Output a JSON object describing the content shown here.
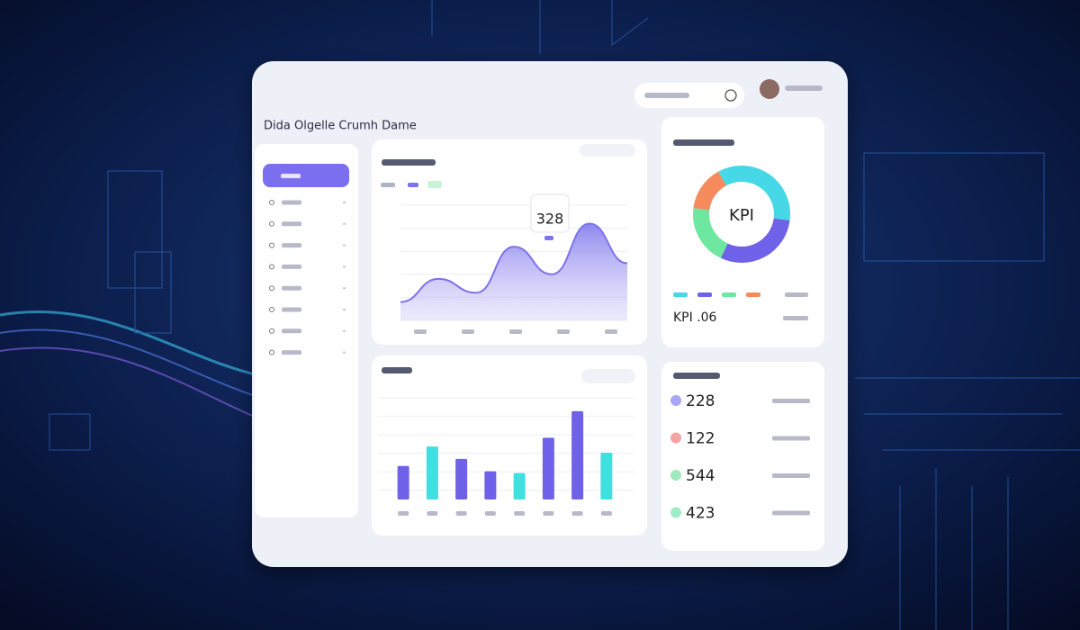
{
  "header": {
    "title": "Dida Olgelle Crumh Dame"
  },
  "area_chart": {
    "type": "area",
    "tooltip": "328",
    "values": [
      20,
      45,
      30,
      80,
      50,
      105,
      62
    ],
    "ylim": [
      0,
      125
    ],
    "color": "#7b72ec"
  },
  "donut": {
    "type": "pie",
    "center_label": "KPI",
    "values": [
      35,
      30,
      20,
      15
    ],
    "colors": [
      "#46d8e6",
      "#6f62e8",
      "#6ee7a0",
      "#f58a5c"
    ],
    "kpi": "KPI .06"
  },
  "bar_chart": {
    "type": "bar",
    "values": [
      38,
      60,
      46,
      32,
      30,
      70,
      100,
      53
    ],
    "colors": [
      "#6f62e8",
      "#3fe0e0",
      "#6f62e8",
      "#6f62e8",
      "#3fe0e0",
      "#6f62e8",
      "#6f62e8",
      "#3fe0e0"
    ],
    "ylim": [
      0,
      105
    ]
  },
  "stats": [
    {
      "value": "228",
      "color": "#a9a6f6"
    },
    {
      "value": "122",
      "color": "#f6a3a3"
    },
    {
      "value": "544",
      "color": "#9fe9bd"
    },
    {
      "value": "423",
      "color": "#9fedc6"
    }
  ]
}
